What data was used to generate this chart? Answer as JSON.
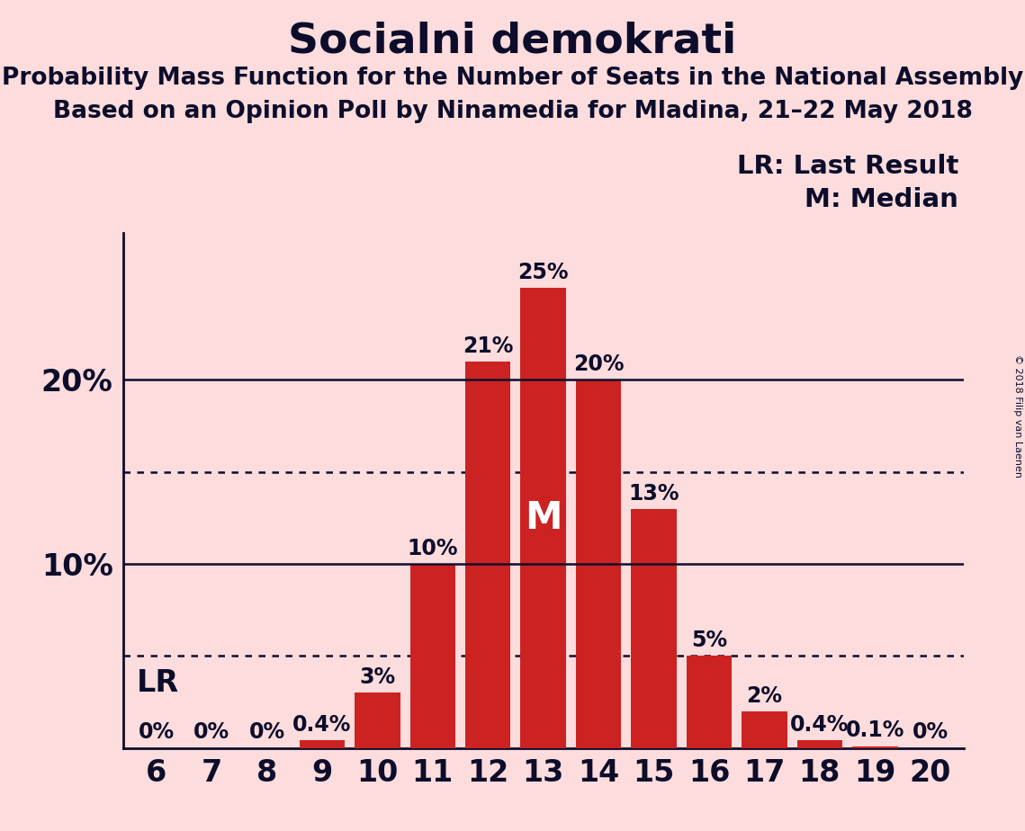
{
  "title": "Socialni demokrati",
  "subtitle1": "Probability Mass Function for the Number of Seats in the National Assembly",
  "subtitle2": "Based on an Opinion Poll by Ninamedia for Mladina, 21–22 May 2018",
  "copyright": "© 2018 Filip van Laenen",
  "categories": [
    6,
    7,
    8,
    9,
    10,
    11,
    12,
    13,
    14,
    15,
    16,
    17,
    18,
    19,
    20
  ],
  "values": [
    0.0,
    0.0,
    0.0,
    0.4,
    3.0,
    10.0,
    21.0,
    25.0,
    20.0,
    13.0,
    5.0,
    2.0,
    0.4,
    0.1,
    0.0
  ],
  "bar_color": "#CC2222",
  "background_color": "#FCDCDC",
  "text_color": "#0D0D2B",
  "bar_labels": [
    "0%",
    "0%",
    "0%",
    "0.4%",
    "3%",
    "10%",
    "21%",
    "25%",
    "20%",
    "13%",
    "5%",
    "2%",
    "0.4%",
    "0.1%",
    "0%"
  ],
  "ylim_max": 28,
  "solid_lines": [
    10,
    20
  ],
  "dotted_lines": [
    5,
    15
  ],
  "median_seat": 13,
  "median_label": "M",
  "lr_label": "LR",
  "legend_lr": "LR: Last Result",
  "legend_m": "M: Median",
  "title_fontsize": 34,
  "subtitle_fontsize": 19,
  "bar_label_fontsize": 17,
  "axis_tick_fontsize": 24,
  "legend_fontsize": 21,
  "lr_fontsize": 24
}
